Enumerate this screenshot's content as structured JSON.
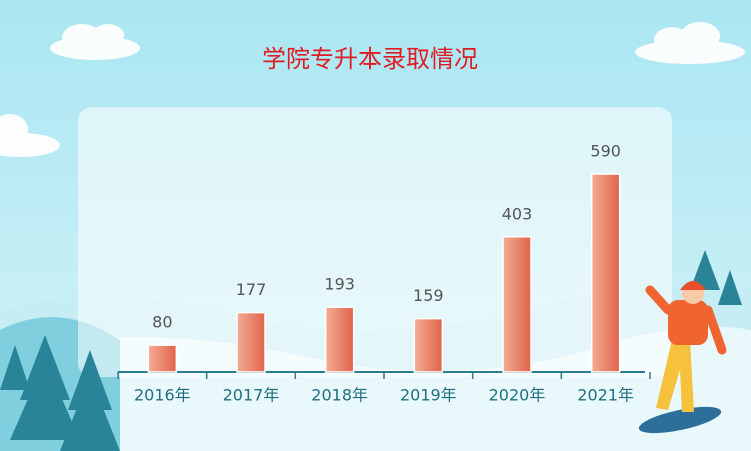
{
  "chart_data": {
    "type": "bar",
    "title": "学院专升本录取情况",
    "categories": [
      "2016年",
      "2017年",
      "2018年",
      "2019年",
      "2020年",
      "2021年"
    ],
    "values": [
      80,
      177,
      193,
      159,
      403,
      590
    ],
    "color": "#e5704f"
  }
}
